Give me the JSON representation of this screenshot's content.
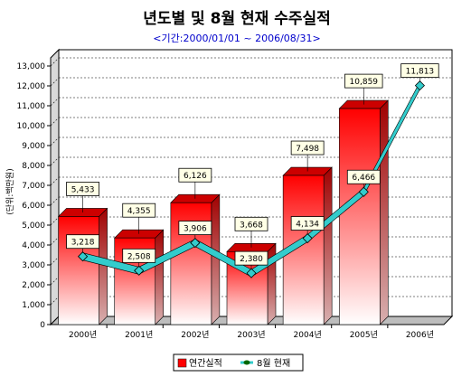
{
  "chart_data": {
    "type": "bar",
    "title": "년도별 및 8월 현재 수주실적",
    "subtitle": "<기간:2000/01/01 ~ 2006/08/31>",
    "ylabel": "(단위:백만원)",
    "xlabel": "",
    "categories": [
      "2000년",
      "2001년",
      "2002년",
      "2003년",
      "2004년",
      "2005년",
      "2006년"
    ],
    "ylim": [
      0,
      13000
    ],
    "yticks": [
      0,
      1000,
      2000,
      3000,
      4000,
      5000,
      6000,
      7000,
      8000,
      9000,
      10000,
      11000,
      12000,
      13000
    ],
    "grid": true,
    "legend_position": "bottom",
    "series": [
      {
        "name": "연간실적",
        "type": "bar",
        "color": "#ff0000",
        "values": [
          5433,
          4355,
          6126,
          3668,
          7498,
          10859,
          null
        ],
        "labels": [
          "5,433",
          "4,355",
          "6,126",
          "3,668",
          "7,498",
          "10,859",
          ""
        ]
      },
      {
        "name": "8월 현재",
        "type": "line",
        "color": "#33cccc",
        "marker_color": "#006600",
        "values": [
          3218,
          2508,
          3906,
          2380,
          4134,
          6466,
          11813
        ],
        "labels": [
          "3,218",
          "2,508",
          "3,906",
          "2,380",
          "4,134",
          "6,466",
          "11,813"
        ]
      }
    ]
  }
}
